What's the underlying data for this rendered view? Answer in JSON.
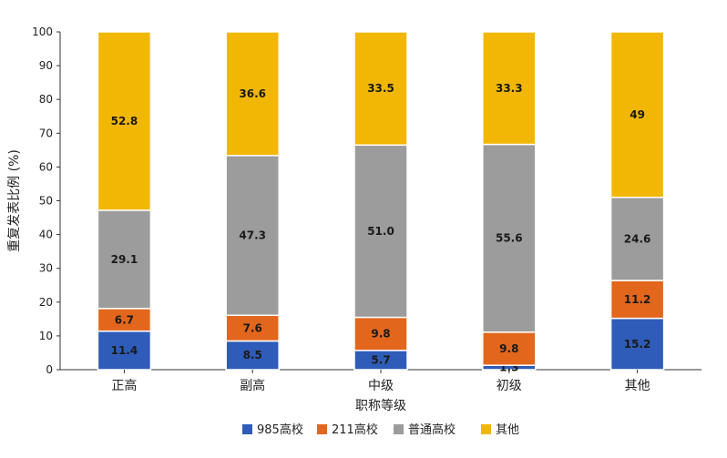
{
  "chart_data": {
    "type": "bar",
    "stacked": true,
    "categories": [
      "正高",
      "副高",
      "中级",
      "初级",
      "其他"
    ],
    "series": [
      {
        "name": "985高校",
        "color": "#2e5cb8",
        "values": [
          11.4,
          8.5,
          5.7,
          1.3,
          15.2
        ]
      },
      {
        "name": "211高校",
        "color": "#e2661c",
        "values": [
          6.7,
          7.6,
          9.8,
          9.8,
          11.2
        ]
      },
      {
        "name": "普通高校",
        "color": "#9c9c9c",
        "values": [
          29.1,
          47.3,
          51.0,
          55.6,
          24.6
        ]
      },
      {
        "name": "其他",
        "color": "#f2b705",
        "values": [
          52.8,
          36.6,
          33.5,
          33.3,
          49
        ]
      }
    ],
    "labels": [
      [
        "11.4",
        "8.5",
        "5.7",
        "1.3",
        "15.2"
      ],
      [
        "6.7",
        "7.6",
        "9.8",
        "9.8",
        "11.2"
      ],
      [
        "29.1",
        "47.3",
        "51.0",
        "55.6",
        "24.6"
      ],
      [
        "52.8",
        "36.6",
        "33.5",
        "33.3",
        "49"
      ]
    ],
    "xlabel": "职称等级",
    "ylabel": "重复发表比例 (%)",
    "ylim": [
      0,
      100
    ],
    "yticks": [
      0,
      10,
      20,
      30,
      40,
      50,
      60,
      70,
      80,
      90,
      100
    ],
    "grid": false,
    "legend_position": "bottom"
  }
}
